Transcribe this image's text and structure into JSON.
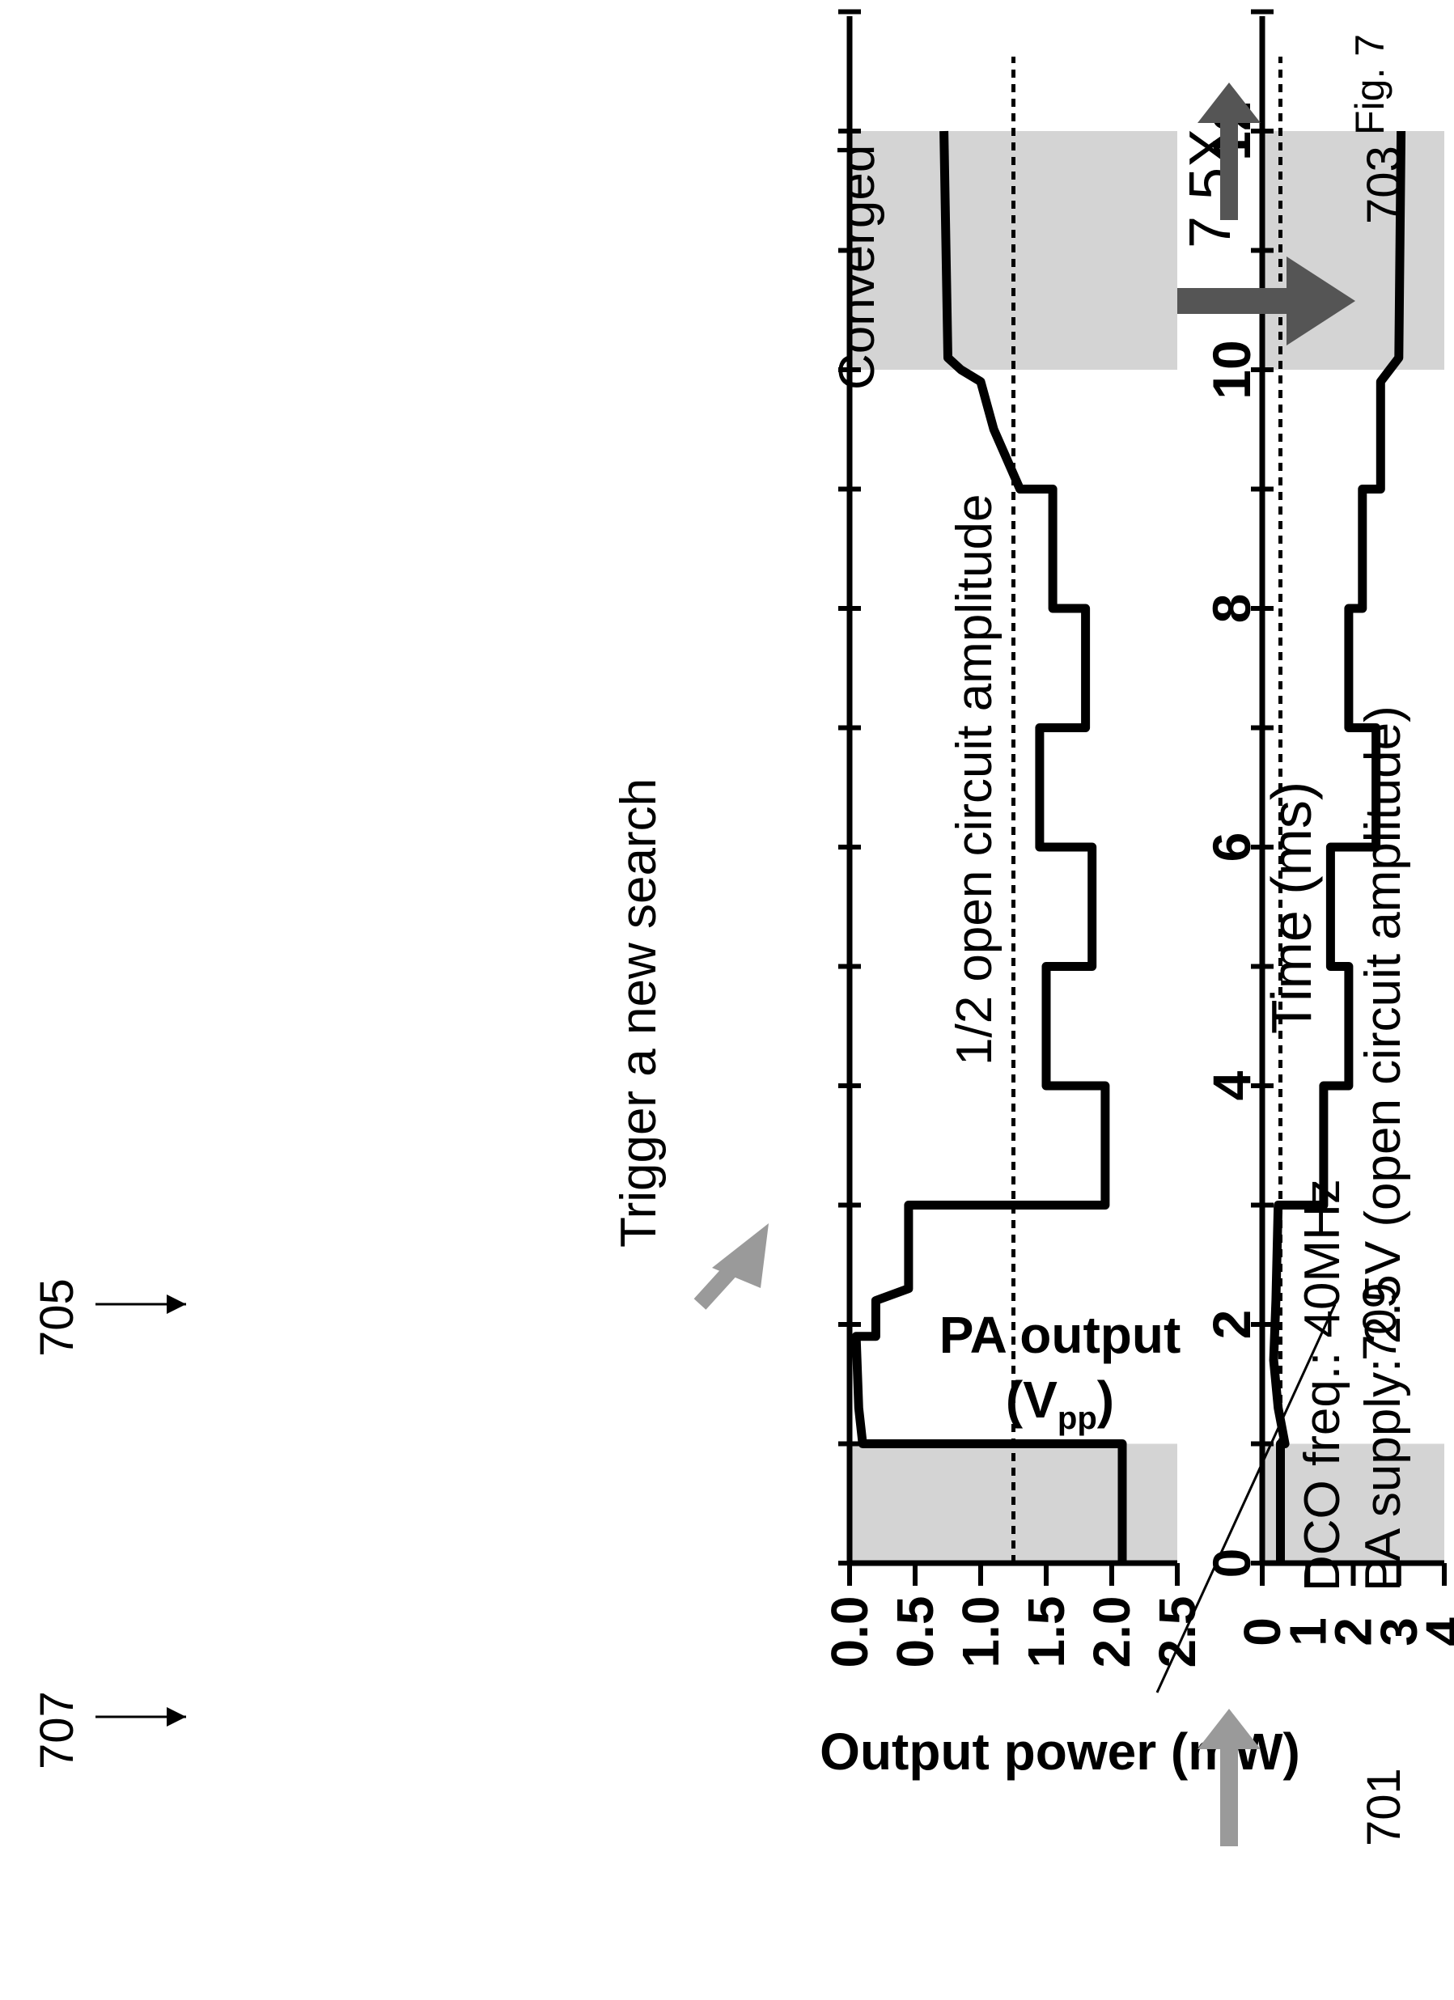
{
  "figure_label": "Fig. 7",
  "refs": {
    "r701": "701",
    "r703": "703",
    "r705": "705",
    "r707": "707",
    "r709": "709"
  },
  "colors": {
    "trace": "#000000",
    "shade": "#d4d4d4",
    "arrow_gray": "#9a9a9a",
    "arrow_dark": "#555555"
  },
  "chart_data": [
    {
      "type": "line",
      "panel": "top",
      "title": "",
      "xlabel": "",
      "ylabel": "Output power (mW)",
      "xlim": [
        0,
        13
      ],
      "ylim": [
        0,
        4
      ],
      "x_ticks": [
        0,
        2,
        4,
        6,
        8,
        10,
        12
      ],
      "y_ticks": [
        "0",
        "1",
        "2",
        "3",
        "4"
      ],
      "y_tick_values": [
        0,
        1,
        2,
        3,
        4
      ],
      "reference_line": 0.4,
      "shaded_ranges": [
        [
          0,
          1
        ],
        [
          10,
          12
        ]
      ],
      "annotations": {
        "supply": "PA supply: 2.5V (open circuit amplitude)",
        "freq": "DCO freq.: 40MHz",
        "gain": "7.5X"
      },
      "series": [
        {
          "points": [
            [
              0,
              0.4
            ],
            [
              1,
              0.4
            ],
            [
              1,
              0.5
            ],
            [
              1.3,
              0.35
            ],
            [
              1.7,
              0.25
            ],
            [
              2.2,
              0.3
            ],
            [
              3,
              0.35
            ],
            [
              3,
              1.35
            ],
            [
              4,
              1.35
            ],
            [
              4,
              1.9
            ],
            [
              5,
              1.9
            ],
            [
              5,
              1.5
            ],
            [
              6,
              1.5
            ],
            [
              6,
              2.5
            ],
            [
              7,
              2.5
            ],
            [
              7,
              1.9
            ],
            [
              8,
              1.9
            ],
            [
              8,
              2.2
            ],
            [
              9,
              2.2
            ],
            [
              9,
              2.6
            ],
            [
              9.9,
              2.6
            ],
            [
              10,
              2.8
            ],
            [
              10.1,
              3.0
            ],
            [
              12,
              3.05
            ]
          ]
        }
      ]
    },
    {
      "type": "line",
      "panel": "bottom",
      "title": "",
      "xlabel": "Time (ms)",
      "ylabel": "PA output (Vpp)",
      "ylabel_main": "PA output",
      "ylabel_unit_pre": "(V",
      "ylabel_unit_sub": "pp",
      "ylabel_unit_post": ")",
      "xlim": [
        0,
        13
      ],
      "ylim": [
        0,
        2.5
      ],
      "x_ticks": [
        0,
        2,
        4,
        6,
        8,
        10,
        12
      ],
      "y_ticks": [
        "0.0",
        "0.5",
        "1.0",
        "1.5",
        "2.0",
        "2.5"
      ],
      "y_tick_values": [
        0,
        0.5,
        1.0,
        1.5,
        2.0,
        2.5
      ],
      "reference_line": 1.25,
      "shaded_ranges": [
        [
          0,
          1
        ],
        [
          10,
          12
        ]
      ],
      "annotations": {
        "trigger": "Trigger a new search",
        "converged": "Converged",
        "half": "1/2 open circuit amplitude"
      },
      "series": [
        {
          "points": [
            [
              0,
              2.08
            ],
            [
              1,
              2.08
            ],
            [
              1,
              0.1
            ],
            [
              1.3,
              0.07
            ],
            [
              1.9,
              0.05
            ],
            [
              1.9,
              0.2
            ],
            [
              2.2,
              0.2
            ],
            [
              2.3,
              0.45
            ],
            [
              3,
              0.45
            ],
            [
              3,
              1.95
            ],
            [
              4,
              1.95
            ],
            [
              4,
              1.5
            ],
            [
              5,
              1.5
            ],
            [
              5,
              1.85
            ],
            [
              6,
              1.85
            ],
            [
              6,
              1.45
            ],
            [
              7,
              1.45
            ],
            [
              7,
              1.8
            ],
            [
              8,
              1.8
            ],
            [
              8,
              1.55
            ],
            [
              9,
              1.55
            ],
            [
              9,
              1.3
            ],
            [
              9.5,
              1.1
            ],
            [
              9.9,
              1.0
            ],
            [
              10,
              0.85
            ],
            [
              10.1,
              0.75
            ],
            [
              12,
              0.72
            ]
          ]
        }
      ]
    }
  ]
}
